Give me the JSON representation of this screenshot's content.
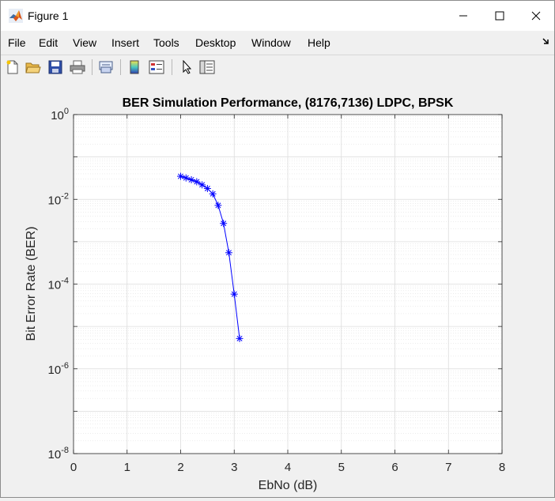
{
  "window": {
    "title": "Figure 1"
  },
  "menu": {
    "items": [
      "File",
      "Edit",
      "View",
      "Insert",
      "Tools",
      "Desktop",
      "Window",
      "Help"
    ]
  },
  "toolbar": {
    "icons": [
      "new-figure-icon",
      "open-file-icon",
      "save-icon",
      "print-icon",
      "link-plot-icon",
      "insert-colorbar-icon",
      "insert-legend-icon",
      "edit-plot-pointer-icon",
      "property-inspector-icon"
    ]
  },
  "chart_data": {
    "type": "line",
    "title": "BER Simulation Performance, (8176,7136) LDPC, BPSK",
    "xlabel": "EbNo (dB)",
    "ylabel": "Bit Error Rate (BER)",
    "xlim": [
      0,
      8
    ],
    "ylim": [
      1e-08,
      1
    ],
    "yscale": "log",
    "grid": true,
    "minor_grid": true,
    "marker": "asterisk",
    "color": "#0000ff",
    "x_ticks": [
      "0",
      "1",
      "2",
      "3",
      "4",
      "5",
      "6",
      "7",
      "8"
    ],
    "y_ticks": [
      {
        "base": "10",
        "exp": "-8"
      },
      {
        "base": "10",
        "exp": "-6"
      },
      {
        "base": "10",
        "exp": "-4"
      },
      {
        "base": "10",
        "exp": "-2"
      },
      {
        "base": "10",
        "exp": "0"
      }
    ],
    "series": [
      {
        "x": [
          2.0,
          2.1,
          2.2,
          2.3,
          2.4,
          2.5,
          2.6,
          2.7,
          2.8,
          2.9,
          3.0,
          3.1
        ],
        "y": [
          0.035,
          0.032,
          0.029,
          0.026,
          0.022,
          0.018,
          0.0135,
          0.0072,
          0.0027,
          0.00055,
          5.8e-05,
          5.2e-06
        ]
      }
    ]
  }
}
